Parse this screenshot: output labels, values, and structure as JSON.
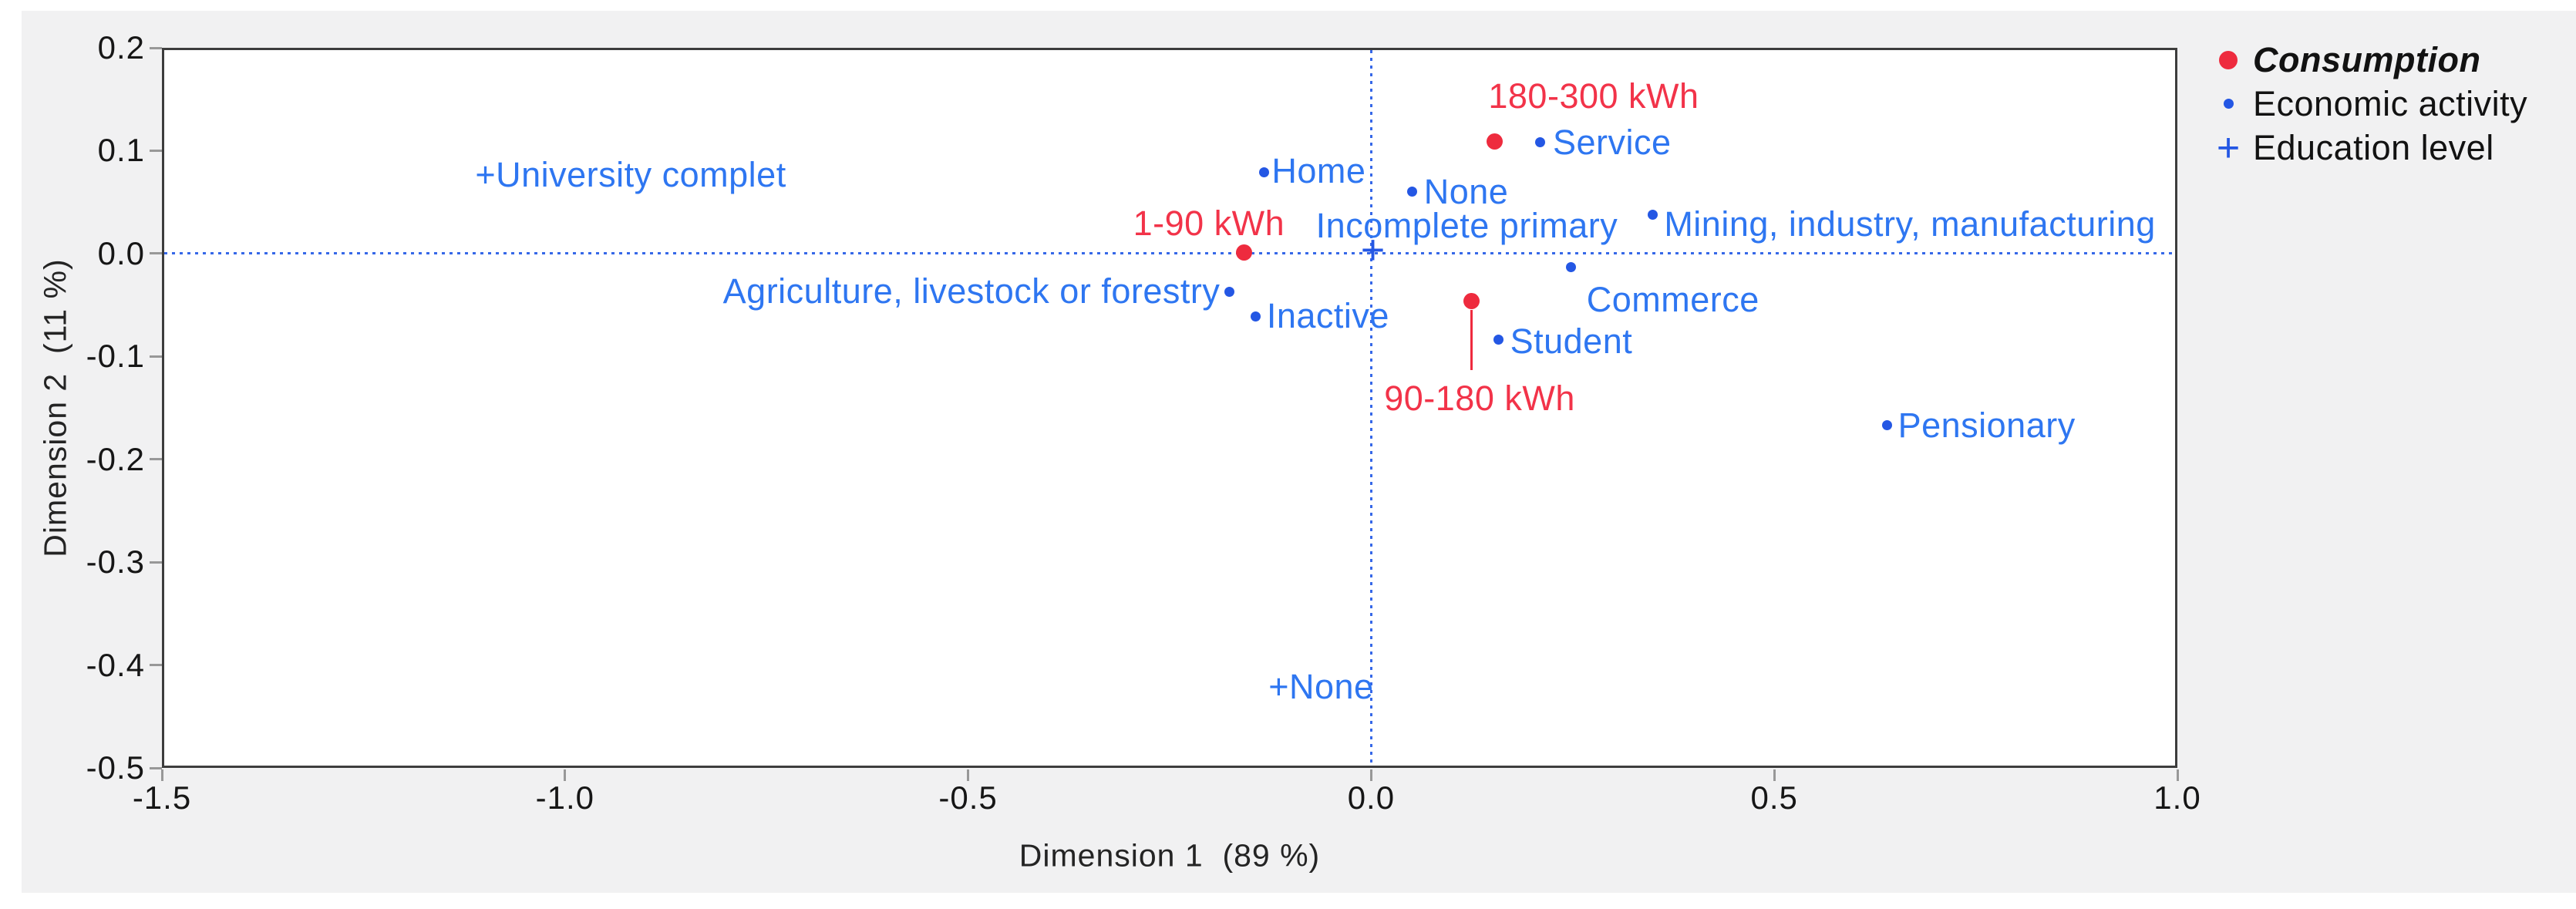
{
  "colors": {
    "consumption_red": "#ee2b3e",
    "red_label": "#f23349",
    "marker_blue": "#2457e4",
    "label_blue": "#2e76f1",
    "ref_line_blue": "#3668e8",
    "panel_gray": "#f1f1f2",
    "plot_border": "#3d3d3d",
    "tick_text": "#161616"
  },
  "chart_data": {
    "type": "scatter",
    "title": "",
    "xlabel": "Dimension 1  (89 %)",
    "ylabel": "Dimension 2  (11 %)",
    "xlim": [
      -1.5,
      1.0
    ],
    "ylim": [
      -0.5,
      0.2
    ],
    "x_ticks": [
      "-1.5",
      "-1.0",
      "-0.5",
      "0.0",
      "0.5",
      "1.0"
    ],
    "y_ticks": [
      "0.2",
      "0.1",
      "0.0",
      "-0.1",
      "-0.2",
      "-0.3",
      "-0.4",
      "-0.5"
    ],
    "grid": false,
    "reference_lines": [
      {
        "axis": "vertical",
        "at": 0.0,
        "style": "dotted"
      },
      {
        "axis": "horizontal",
        "at": 0.0,
        "style": "dotted"
      }
    ],
    "legend": {
      "position": "outside-top-right",
      "items": [
        {
          "label": "Consumption",
          "marker": "circle",
          "color_key": "consumption_red",
          "bold_italic": true
        },
        {
          "label": "Economic activity",
          "marker": "circle",
          "color_key": "marker_blue",
          "bold_italic": false
        },
        {
          "label": "Education level",
          "marker": "plus",
          "color_key": "marker_blue",
          "bold_italic": false
        }
      ]
    },
    "series": [
      {
        "name": "Consumption",
        "marker": "circle",
        "marker_diameter": 21,
        "color_key": "consumption_red",
        "label_color_key": "red_label",
        "points": [
          {
            "label": "180-300 kWh",
            "x": 0.153,
            "y": 0.109,
            "anchor": "left",
            "dx": -8,
            "dy": -58
          },
          {
            "label": "1-90 kWh",
            "x": -0.158,
            "y": 0.001,
            "anchor": "right",
            "dx": 53,
            "dy": -38
          },
          {
            "label": "90-180 kWh",
            "x": 0.124,
            "y": -0.046,
            "anchor": "center",
            "dx": 11,
            "dy": 127,
            "leader_len": 78
          }
        ]
      },
      {
        "name": "Economic activity",
        "marker": "circle",
        "marker_diameter": 13,
        "color_key": "marker_blue",
        "label_color_key": "label_blue",
        "points": [
          {
            "label": "Service",
            "x": 0.21,
            "y": 0.108,
            "anchor": "left",
            "dx": 16,
            "dy": 0
          },
          {
            "label": "Home",
            "x": -0.133,
            "y": 0.079,
            "anchor": "left",
            "dx": 10,
            "dy": -1
          },
          {
            "label": "None",
            "x": 0.051,
            "y": 0.06,
            "anchor": "left",
            "dx": 15,
            "dy": 0
          },
          {
            "label": "Mining, industry, manufacturing",
            "x": 0.349,
            "y": 0.038,
            "anchor": "left",
            "dx": 15,
            "dy": 13
          },
          {
            "label": "Agriculture, livestock or forestry",
            "x": -0.176,
            "y": -0.037,
            "anchor": "right",
            "dx": -12,
            "dy": 0
          },
          {
            "label": "Commerce",
            "x": 0.248,
            "y": -0.013,
            "anchor": "left",
            "dx": 20,
            "dy": 43
          },
          {
            "label": "Inactive",
            "x": -0.143,
            "y": -0.061,
            "anchor": "left",
            "dx": 14,
            "dy": 0
          },
          {
            "label": "Student",
            "x": 0.158,
            "y": -0.084,
            "anchor": "left",
            "dx": 15,
            "dy": 2
          },
          {
            "label": "Pensionary",
            "x": 0.64,
            "y": -0.167,
            "anchor": "left",
            "dx": 14,
            "dy": 0
          }
        ]
      },
      {
        "name": "Education level",
        "marker": "plus",
        "color_key": "marker_blue",
        "label_color_key": "label_blue",
        "points": [
          {
            "label": "+University complet",
            "x": -1.098,
            "y": 0.076,
            "anchor": "left",
            "dx": -14,
            "dy": 0,
            "show_marker": false
          },
          {
            "label": "Incomplete primary",
            "x": 0.002,
            "y": 0.002,
            "anchor": "center",
            "dx": 122,
            "dy": -33,
            "show_marker": true
          },
          {
            "label": "+None",
            "x": -0.114,
            "y": -0.421,
            "anchor": "left",
            "dx": -14,
            "dy": 0,
            "show_marker": false
          }
        ]
      }
    ]
  }
}
